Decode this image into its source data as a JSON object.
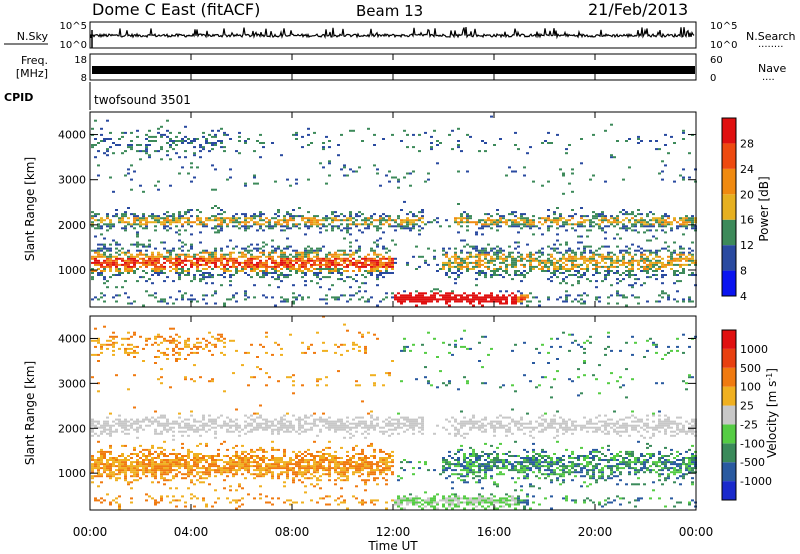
{
  "header": {
    "title": "Dome C East (fitACF)",
    "beam": "Beam 13",
    "date": "21/Feb/2013"
  },
  "noise_panel": {
    "left_label": "N.Sky",
    "right_label": "N.Search",
    "right_dots": "........",
    "ticks": [
      "10^5",
      "10^0"
    ]
  },
  "freq_panel": {
    "left_label_1": "Freq.",
    "left_label_2": "[MHz]",
    "right_label": "Nave",
    "right_dots": "....",
    "left_ticks": [
      "18",
      "8"
    ],
    "right_ticks": [
      "60",
      "0"
    ]
  },
  "cpid": {
    "label": "CPID",
    "program": "twofsound 3501"
  },
  "chart_data": [
    {
      "type": "heatmap",
      "name": "power",
      "ylabel": "Slant Range [km]",
      "ylim": [
        180,
        4500
      ],
      "y_ticks": [
        "4000",
        "3000",
        "2000",
        "1000"
      ],
      "colorbar_label": "Power [dB]",
      "colorbar_ticks": [
        "28",
        "24",
        "20",
        "16",
        "12",
        "8",
        "4"
      ],
      "colors": [
        "#0a14f0",
        "#2a4aa0",
        "#3d8a5a",
        "#e6b020",
        "#f08a10",
        "#ee4a10",
        "#e01010"
      ]
    },
    {
      "type": "heatmap",
      "name": "velocity",
      "ylabel": "Slant Range [km]",
      "ylim": [
        180,
        4500
      ],
      "y_ticks": [
        "4000",
        "3000",
        "2000",
        "1000"
      ],
      "colorbar_label": "Velocity [m s",
      "colorbar_label_sup": "-1",
      "colorbar_label_end": "]",
      "colorbar_ticks": [
        "1000",
        "500",
        "100",
        "25",
        "-25",
        "-100",
        "-500",
        "-1000"
      ],
      "colors": [
        "#1a2acc",
        "#2a5aa0",
        "#3a8a5a",
        "#55cc44",
        "#c8c8c8",
        "#f0b020",
        "#f07a10",
        "#e84010",
        "#e01010"
      ]
    }
  ],
  "xaxis": {
    "ticks": [
      "00:00",
      "04:00",
      "08:00",
      "12:00",
      "16:00",
      "20:00",
      "00:00"
    ],
    "label": "Time UT"
  }
}
